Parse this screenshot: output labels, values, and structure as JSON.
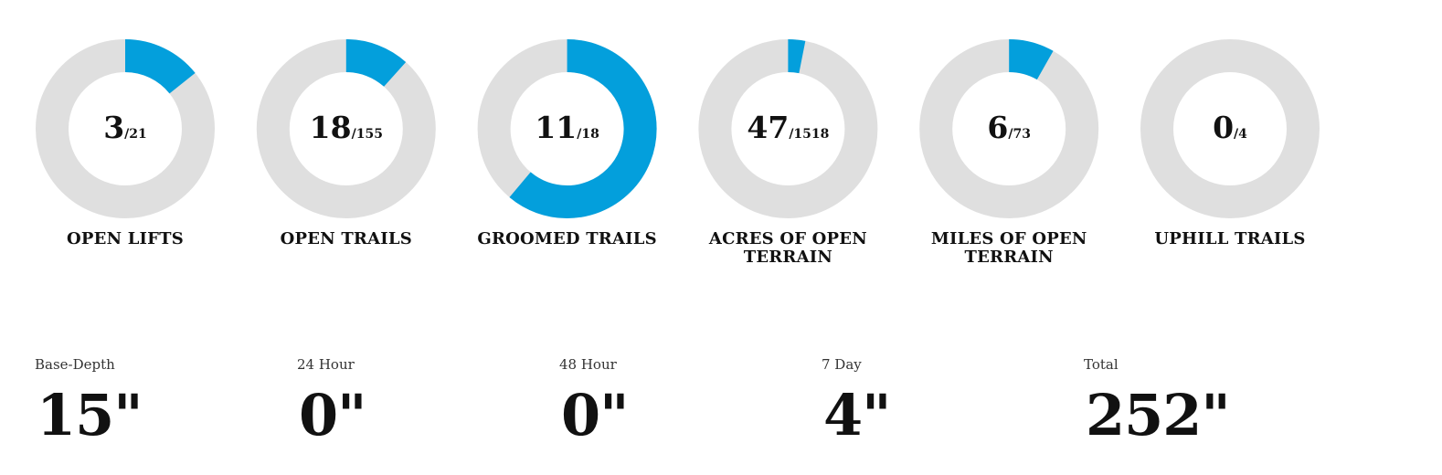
{
  "gauges": [
    {
      "label": "OPEN LIFTS",
      "open": 3,
      "total": 21,
      "total_label": "/21"
    },
    {
      "label": "OPEN TRAILS",
      "open": 18,
      "total": 155,
      "total_label": "/155"
    },
    {
      "label": "GROOMED TRAILS",
      "open": 11,
      "total": 18,
      "total_label": "/18"
    },
    {
      "label": "ACRES OF OPEN TERRAIN",
      "open": 47,
      "total": 1518,
      "total_label": "/1518"
    },
    {
      "label": "MILES OF OPEN TERRAIN",
      "open": 6,
      "total": 73,
      "total_label": "/73"
    },
    {
      "label": "UPHILL TRAILS",
      "open": 0,
      "total": 4,
      "total_label": "/4"
    }
  ],
  "colors": {
    "open": "#039fdc",
    "track": "#dfdfdf"
  },
  "snow": [
    {
      "label": "Base-Depth",
      "value": "15\""
    },
    {
      "label": "24 Hour",
      "value": "0\""
    },
    {
      "label": "48 Hour",
      "value": "0\""
    },
    {
      "label": "7 Day",
      "value": "4\""
    },
    {
      "label": "Total",
      "value": "252\""
    }
  ]
}
